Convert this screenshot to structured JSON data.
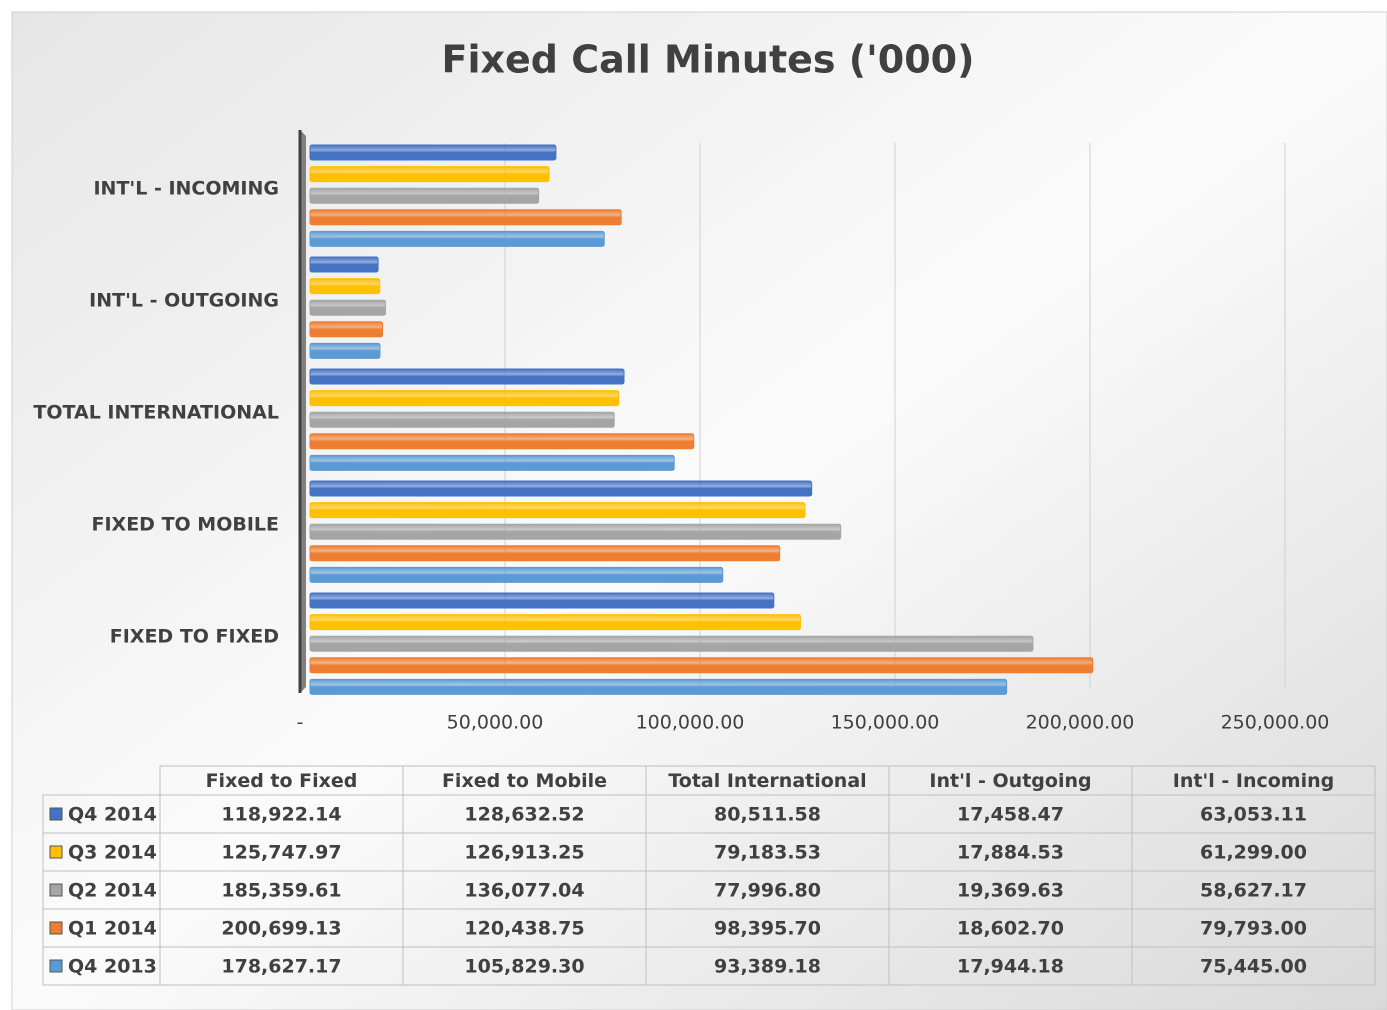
{
  "chart_data": {
    "type": "hbar",
    "title": "Fixed Call Minutes ('000)",
    "categories": [
      "FIXED TO FIXED",
      "FIXED TO MOBILE",
      "TOTAL INTERNATIONAL",
      "INT'L - OUTGOING",
      "INT'L - INCOMING"
    ],
    "table_columns": [
      "Fixed to Fixed",
      "Fixed to Mobile",
      "Total International",
      "Int'l - Outgoing",
      "Int'l - Incoming"
    ],
    "series": [
      {
        "name": "Q4 2014",
        "color": "#4472c4",
        "values": [
          118922.14,
          128632.52,
          80511.58,
          17458.47,
          63053.11
        ],
        "value_labels": [
          "118,922.14",
          "128,632.52",
          "80,511.58",
          "17,458.47",
          "63,053.11"
        ]
      },
      {
        "name": "Q3 2014",
        "color": "#ffc000",
        "values": [
          125747.97,
          126913.25,
          79183.53,
          17884.53,
          61299.0
        ],
        "value_labels": [
          "125,747.97",
          "126,913.25",
          "79,183.53",
          "17,884.53",
          "61,299.00"
        ]
      },
      {
        "name": "Q2 2014",
        "color": "#a5a5a5",
        "values": [
          185359.61,
          136077.04,
          77996.8,
          19369.63,
          58627.17
        ],
        "value_labels": [
          "185,359.61",
          "136,077.04",
          "77,996.80",
          "19,369.63",
          "58,627.17"
        ]
      },
      {
        "name": "Q1 2014",
        "color": "#ed7d31",
        "values": [
          200699.13,
          120438.75,
          98395.7,
          18602.7,
          79793.0
        ],
        "value_labels": [
          "200,699.13",
          "120,438.75",
          "98,395.70",
          "18,602.70",
          "79,793.00"
        ]
      },
      {
        "name": "Q4 2013",
        "color": "#5b9bd5",
        "values": [
          178627.17,
          105829.3,
          93389.18,
          17944.18,
          75445.0
        ],
        "value_labels": [
          "178,627.17",
          "105,829.30",
          "93,389.18",
          "17,944.18",
          "75,445.00"
        ]
      }
    ],
    "xlim": [
      0,
      250000
    ],
    "xticks": [
      {
        "value": 0,
        "label": "-"
      },
      {
        "value": 50000,
        "label": "50,000.00"
      },
      {
        "value": 100000,
        "label": "100,000.00"
      },
      {
        "value": 150000,
        "label": "150,000.00"
      },
      {
        "value": 200000,
        "label": "200,000.00"
      },
      {
        "value": 250000,
        "label": "250,000.00"
      }
    ],
    "grid": true
  }
}
